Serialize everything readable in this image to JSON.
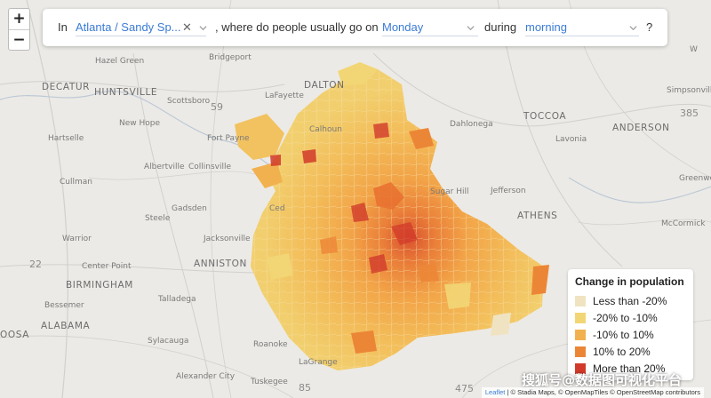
{
  "query": {
    "prefix": "In",
    "region": "Atlanta / Sandy Sp...",
    "clear_glyph": "✕",
    "middle": ", where do people usually go on",
    "day": "Monday",
    "between": "during",
    "time": "morning",
    "suffix": "?"
  },
  "zoom": {
    "in": "+",
    "out": "−"
  },
  "legend": {
    "title": "Change in population",
    "items": [
      {
        "label": "Less than -20%",
        "color": "#efe3c2"
      },
      {
        "label": "-20% to -10%",
        "color": "#f2d675"
      },
      {
        "label": "-10% to 10%",
        "color": "#f2b14f"
      },
      {
        "label": "10% to 20%",
        "color": "#ec8637"
      },
      {
        "label": "More than 20%",
        "color": "#d13a2a"
      }
    ]
  },
  "places": {
    "hazel_green": "Hazel Green",
    "bridgeport": "Bridgeport",
    "huntsville": "HUNTSVILLE",
    "dalton": "DALTON",
    "lafayette": "LaFayette",
    "decatur": "DECATUR",
    "scottsboro": "Scottsboro",
    "rt59": "59",
    "new_hope": "New Hope",
    "hartselle": "Hartselle",
    "fort_payne": "Fort Payne",
    "calhoun": "Calhoun",
    "dahlonega": "Dahlonega",
    "toccoa": "TOCCOA",
    "anderson": "ANDERSON",
    "lavonia": "Lavonia",
    "simpsonville": "Simpsonville",
    "rt385": "385",
    "greenwood": "Greenwood",
    "cullman": "Cullman",
    "albertville": "Albertville",
    "collinsville": "Collinsville",
    "sugar_hill": "Sugar Hill",
    "jefferson": "Jefferson",
    "athens": "ATHENS",
    "gadsden": "Gadsden",
    "steele": "Steele",
    "jacksonville": "Jacksonville",
    "warrior": "Warrior",
    "mccormick": "McCormick",
    "rt22": "22",
    "anniston": "ANNISTON",
    "center_point": "Center Point",
    "birmingham": "BIRMINGHAM",
    "talladega": "Talladega",
    "bessemer": "Bessemer",
    "alabama": "ALABAMA",
    "osa": "OOSA",
    "sylacauga": "Sylacauga",
    "roanoke": "Roanoke",
    "lagrange": "LaGrange",
    "alexander_city": "Alexander City",
    "tuskegee": "Tuskegee",
    "rt85": "85",
    "rt475": "475",
    "cedartown": "Ced",
    "w": "W"
  },
  "attribution": {
    "leaflet": "Leaflet",
    "rest": " | © Stadia Maps, © OpenMapTiles © OpenStreetMap contributors"
  },
  "watermark": "搜狐号@数据图可视化平台"
}
